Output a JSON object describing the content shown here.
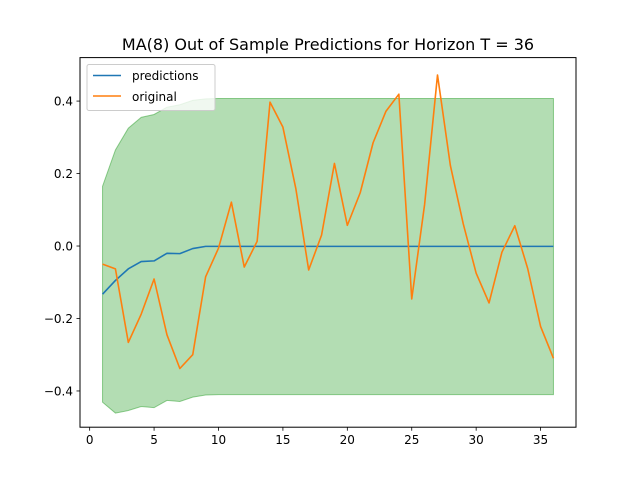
{
  "chart_data": {
    "type": "line",
    "title": "MA(8) Out of Sample Predictions for Horizon T = 36",
    "xlabel": "",
    "ylabel": "",
    "xlim": [
      -0.75,
      37.75
    ],
    "ylim": [
      -0.5,
      0.52
    ],
    "x_ticks": [
      0,
      5,
      10,
      15,
      20,
      25,
      30,
      35
    ],
    "y_ticks": [
      -0.4,
      -0.2,
      0.0,
      0.2,
      0.4
    ],
    "x_tick_labels": [
      "0",
      "5",
      "10",
      "15",
      "20",
      "25",
      "30",
      "35"
    ],
    "y_tick_labels": [
      "−0.4",
      "−0.2",
      "0.0",
      "0.2",
      "0.4"
    ],
    "grid": false,
    "legend_position": "top-left",
    "x": [
      1,
      2,
      3,
      4,
      5,
      6,
      7,
      8,
      9,
      10,
      11,
      12,
      13,
      14,
      15,
      16,
      17,
      18,
      19,
      20,
      21,
      22,
      23,
      24,
      25,
      26,
      27,
      28,
      29,
      30,
      31,
      32,
      33,
      34,
      35,
      36
    ],
    "series": [
      {
        "name": "predictions",
        "color": "#1f77b4",
        "values": [
          -0.133,
          -0.095,
          -0.063,
          -0.043,
          -0.041,
          -0.02,
          -0.021,
          -0.007,
          -0.001,
          -0.001,
          -0.001,
          -0.001,
          -0.001,
          -0.001,
          -0.001,
          -0.001,
          -0.001,
          -0.001,
          -0.001,
          -0.001,
          -0.001,
          -0.001,
          -0.001,
          -0.001,
          -0.001,
          -0.001,
          -0.001,
          -0.001,
          -0.001,
          -0.001,
          -0.001,
          -0.001,
          -0.001,
          -0.001,
          -0.001,
          -0.001
        ]
      },
      {
        "name": "original",
        "color": "#ff7f0e",
        "values": [
          -0.05,
          -0.063,
          -0.266,
          -0.188,
          -0.091,
          -0.245,
          -0.338,
          -0.3,
          -0.085,
          -0.006,
          0.121,
          -0.058,
          0.013,
          0.397,
          0.328,
          0.159,
          -0.066,
          0.03,
          0.228,
          0.057,
          0.147,
          0.285,
          0.372,
          0.419,
          -0.146,
          0.115,
          0.472,
          0.222,
          0.061,
          -0.075,
          -0.157,
          -0.017,
          0.056,
          -0.062,
          -0.222,
          -0.31
        ]
      }
    ],
    "confidence_band": {
      "color": "#2ca02c",
      "upper": [
        0.165,
        0.265,
        0.325,
        0.355,
        0.363,
        0.383,
        0.39,
        0.402,
        0.406,
        0.407,
        0.407,
        0.407,
        0.407,
        0.407,
        0.407,
        0.407,
        0.407,
        0.407,
        0.407,
        0.407,
        0.407,
        0.407,
        0.407,
        0.407,
        0.407,
        0.407,
        0.407,
        0.407,
        0.407,
        0.407,
        0.407,
        0.407,
        0.407,
        0.407,
        0.407,
        0.407
      ],
      "lower": [
        -0.431,
        -0.461,
        -0.454,
        -0.443,
        -0.446,
        -0.426,
        -0.429,
        -0.417,
        -0.411,
        -0.41,
        -0.41,
        -0.41,
        -0.41,
        -0.41,
        -0.41,
        -0.41,
        -0.41,
        -0.41,
        -0.41,
        -0.41,
        -0.41,
        -0.41,
        -0.41,
        -0.41,
        -0.41,
        -0.41,
        -0.41,
        -0.41,
        -0.41,
        -0.41,
        -0.41,
        -0.41,
        -0.41,
        -0.41,
        -0.41,
        -0.41
      ]
    }
  }
}
